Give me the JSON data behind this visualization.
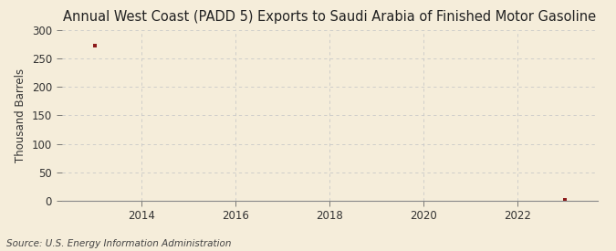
{
  "title": "Annual West Coast (PADD 5) Exports to Saudi Arabia of Finished Motor Gasoline",
  "ylabel": "Thousand Barrels",
  "source": "Source: U.S. Energy Information Administration",
  "background_color": "#f5edda",
  "data_points": [
    {
      "year": 2013,
      "value": 272
    },
    {
      "year": 2023,
      "value": 2
    }
  ],
  "xlim": [
    2012.3,
    2023.7
  ],
  "ylim": [
    0,
    300
  ],
  "yticks": [
    0,
    50,
    100,
    150,
    200,
    250,
    300
  ],
  "xticks": [
    2014,
    2016,
    2018,
    2020,
    2022
  ],
  "marker_color": "#8b1a1a",
  "grid_color": "#c8c8c8",
  "title_fontsize": 10.5,
  "label_fontsize": 8.5,
  "tick_fontsize": 8.5,
  "source_fontsize": 7.5
}
